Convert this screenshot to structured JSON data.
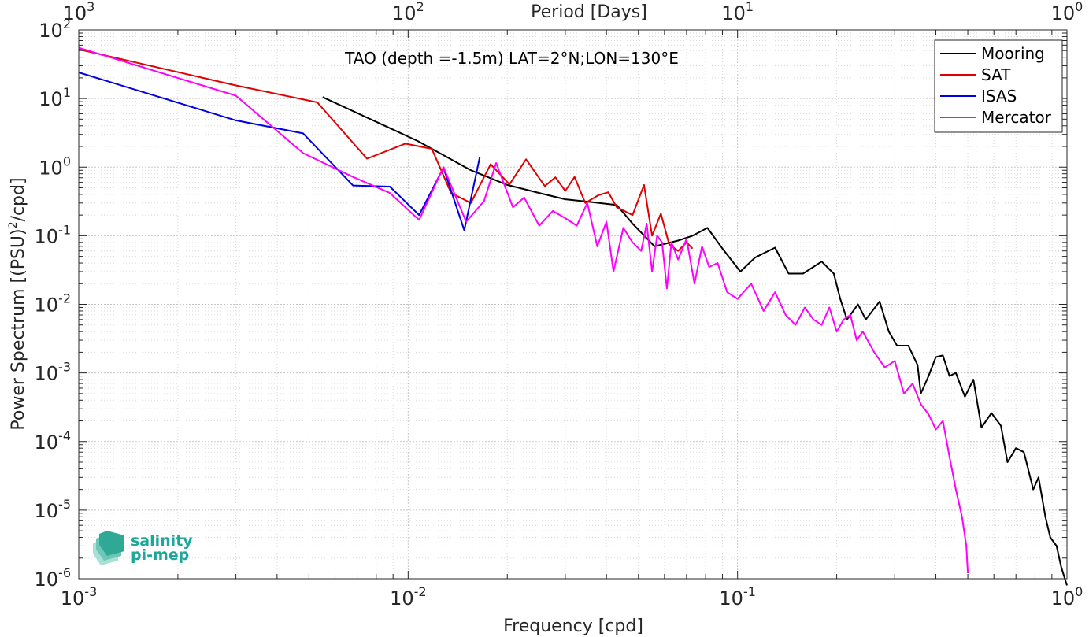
{
  "chart_data": {
    "type": "line",
    "annotation": "TAO (depth =-1.5m) LAT=2°N;LON=130°E",
    "xlabel": "Frequency [cpd]",
    "ylabel": "Power Spectrum [(PSU)",
    "ylabel_sup": "2",
    "ylabel_tail": "/cpd]",
    "top_xlabel": "Period [Days]",
    "x_scale": "log",
    "y_scale": "log",
    "xlim": [
      0.001,
      1
    ],
    "ylim": [
      1e-06,
      100
    ],
    "grid": true,
    "legend_position": "top-right",
    "x_ticks": [
      {
        "base": "10",
        "exp": "-3",
        "value": 0.001
      },
      {
        "base": "10",
        "exp": "-2",
        "value": 0.01
      },
      {
        "base": "10",
        "exp": "-1",
        "value": 0.1
      },
      {
        "base": "10",
        "exp": "0",
        "value": 1
      }
    ],
    "top_ticks": [
      {
        "base": "10",
        "exp": "3",
        "value": 0.001
      },
      {
        "base": "10",
        "exp": "2",
        "value": 0.01
      },
      {
        "base": "10",
        "exp": "1",
        "value": 0.1
      },
      {
        "base": "10",
        "exp": "0",
        "value": 1
      }
    ],
    "y_ticks": [
      {
        "base": "10",
        "exp": "2",
        "value": 100
      },
      {
        "base": "10",
        "exp": "1",
        "value": 10
      },
      {
        "base": "10",
        "exp": "0",
        "value": 1
      },
      {
        "base": "10",
        "exp": "-1",
        "value": 0.1
      },
      {
        "base": "10",
        "exp": "-2",
        "value": 0.01
      },
      {
        "base": "10",
        "exp": "-3",
        "value": 0.001
      },
      {
        "base": "10",
        "exp": "-4",
        "value": 0.0001
      },
      {
        "base": "10",
        "exp": "-5",
        "value": 1e-05
      },
      {
        "base": "10",
        "exp": "-6",
        "value": 1e-06
      }
    ],
    "series": [
      {
        "name": "Mooring",
        "color": "#000000",
        "x": [
          0.0055,
          0.0107,
          0.0155,
          0.02,
          0.025,
          0.03,
          0.036,
          0.043,
          0.048,
          0.056,
          0.066,
          0.073,
          0.081,
          0.09,
          0.102,
          0.113,
          0.13,
          0.143,
          0.158,
          0.18,
          0.196,
          0.205,
          0.215,
          0.232,
          0.245,
          0.27,
          0.288,
          0.305,
          0.33,
          0.352,
          0.36,
          0.38,
          0.4,
          0.42,
          0.44,
          0.46,
          0.49,
          0.52,
          0.55,
          0.59,
          0.63,
          0.66,
          0.7,
          0.74,
          0.79,
          0.82,
          0.86,
          0.89,
          0.93,
          0.96,
          0.985,
          1.0
        ],
        "y": [
          10.5,
          2.4,
          0.9,
          0.55,
          0.42,
          0.34,
          0.31,
          0.28,
          0.15,
          0.07,
          0.085,
          0.1,
          0.13,
          0.065,
          0.03,
          0.048,
          0.067,
          0.028,
          0.028,
          0.042,
          0.028,
          0.012,
          0.006,
          0.01,
          0.006,
          0.011,
          0.004,
          0.0025,
          0.0025,
          0.0013,
          0.0005,
          0.0009,
          0.0017,
          0.0018,
          0.0009,
          0.001,
          0.00045,
          0.0008,
          0.00016,
          0.00026,
          0.00017,
          5e-05,
          8e-05,
          7e-05,
          2e-05,
          3e-05,
          8e-06,
          4e-06,
          3e-06,
          1.5e-06,
          1e-06,
          8e-07
        ]
      },
      {
        "name": "SAT",
        "color": "#e00000",
        "x": [
          0.001,
          0.003,
          0.0053,
          0.0075,
          0.0098,
          0.0118,
          0.0135,
          0.0155,
          0.0178,
          0.0203,
          0.0228,
          0.026,
          0.028,
          0.03,
          0.032,
          0.0345,
          0.0378,
          0.0405,
          0.043,
          0.048,
          0.052,
          0.055,
          0.0585,
          0.062,
          0.066,
          0.07,
          0.073
        ],
        "y": [
          52,
          15.5,
          8.8,
          1.33,
          2.2,
          1.85,
          0.42,
          0.3,
          1.1,
          0.56,
          1.3,
          0.53,
          0.71,
          0.45,
          0.72,
          0.3,
          0.39,
          0.43,
          0.26,
          0.2,
          0.55,
          0.1,
          0.21,
          0.075,
          0.06,
          0.08,
          0.065
        ]
      },
      {
        "name": "ISAS",
        "color": "#0000e0",
        "x": [
          0.001,
          0.003,
          0.0048,
          0.0068,
          0.0088,
          0.0108,
          0.0128,
          0.0148,
          0.0165
        ],
        "y": [
          24,
          4.8,
          3.1,
          0.54,
          0.52,
          0.2,
          0.98,
          0.12,
          1.4
        ]
      },
      {
        "name": "Mercator",
        "color": "#ff00ff",
        "x": [
          0.001,
          0.003,
          0.0048,
          0.0068,
          0.0088,
          0.0108,
          0.0128,
          0.015,
          0.017,
          0.0185,
          0.0208,
          0.0225,
          0.025,
          0.0275,
          0.03,
          0.0325,
          0.035,
          0.0375,
          0.04,
          0.042,
          0.045,
          0.048,
          0.051,
          0.053,
          0.055,
          0.057,
          0.059,
          0.061,
          0.063,
          0.066,
          0.07,
          0.074,
          0.078,
          0.082,
          0.087,
          0.093,
          0.1,
          0.11,
          0.12,
          0.13,
          0.14,
          0.15,
          0.16,
          0.17,
          0.18,
          0.19,
          0.2,
          0.21,
          0.22,
          0.23,
          0.24,
          0.26,
          0.28,
          0.3,
          0.32,
          0.34,
          0.36,
          0.38,
          0.4,
          0.42,
          0.44,
          0.46,
          0.48,
          0.495,
          0.5
        ],
        "y": [
          55,
          11,
          1.6,
          0.72,
          0.42,
          0.17,
          1.0,
          0.16,
          0.32,
          1.15,
          0.26,
          0.36,
          0.14,
          0.23,
          0.18,
          0.14,
          0.3,
          0.07,
          0.16,
          0.03,
          0.13,
          0.08,
          0.06,
          0.15,
          0.03,
          0.1,
          0.08,
          0.017,
          0.08,
          0.045,
          0.09,
          0.02,
          0.07,
          0.035,
          0.04,
          0.015,
          0.012,
          0.02,
          0.008,
          0.015,
          0.007,
          0.005,
          0.009,
          0.006,
          0.005,
          0.009,
          0.004,
          0.006,
          0.007,
          0.003,
          0.004,
          0.002,
          0.0012,
          0.0015,
          0.0005,
          0.0007,
          0.00035,
          0.00025,
          0.00015,
          0.0002,
          6e-05,
          2e-05,
          8e-06,
          3e-06,
          1.2e-06
        ]
      }
    ]
  },
  "logo": {
    "line1": "salinity",
    "line2": "pi-mep"
  }
}
